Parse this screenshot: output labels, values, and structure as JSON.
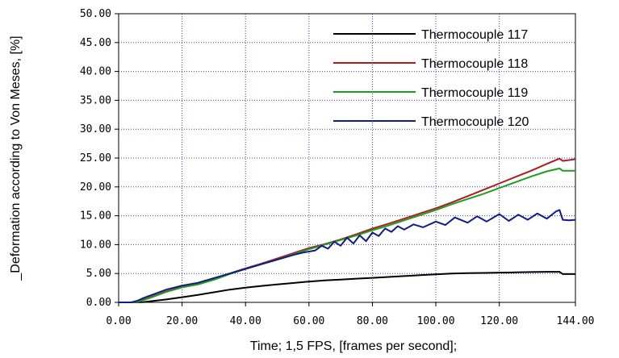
{
  "chart_data": {
    "type": "line",
    "title": "",
    "xlabel": "Time; 1,5 FPS, [frames per second];",
    "ylabel": "Deformation according to Von Meses, [%]",
    "ylabel_prefix": "_",
    "xlim": [
      0,
      144
    ],
    "ylim": [
      0,
      50
    ],
    "x_ticks": [
      "0.00",
      "20.00",
      "40.00",
      "60.00",
      "80.00",
      "100.00",
      "120.00",
      "144.00"
    ],
    "x_tick_values": [
      0,
      20,
      40,
      60,
      80,
      100,
      120,
      144
    ],
    "y_ticks": [
      "0.00",
      "5.00",
      "10.00",
      "15.00",
      "20.00",
      "25.00",
      "30.00",
      "35.00",
      "40.00",
      "45.00",
      "50.00"
    ],
    "y_tick_values": [
      0,
      5,
      10,
      15,
      20,
      25,
      30,
      35,
      40,
      45,
      50
    ],
    "grid": true,
    "legend_position": "top-right",
    "series": [
      {
        "name": "Thermocouple 117",
        "color": "#000000",
        "x": [
          0,
          5,
          8,
          10,
          15,
          20,
          25,
          30,
          35,
          40,
          45,
          50,
          55,
          60,
          65,
          70,
          75,
          80,
          85,
          90,
          95,
          100,
          105,
          110,
          115,
          120,
          125,
          130,
          135,
          139,
          140,
          144
        ],
        "y": [
          0,
          0,
          0.05,
          0.2,
          0.5,
          0.9,
          1.3,
          1.75,
          2.2,
          2.55,
          2.85,
          3.1,
          3.35,
          3.6,
          3.8,
          3.95,
          4.1,
          4.25,
          4.4,
          4.55,
          4.7,
          4.85,
          5.0,
          5.05,
          5.1,
          5.15,
          5.2,
          5.25,
          5.3,
          5.3,
          4.9,
          4.9
        ]
      },
      {
        "name": "Thermocouple 118",
        "color": "#b01c1c",
        "x": [
          0,
          4,
          6,
          8,
          10,
          15,
          20,
          25,
          30,
          35,
          40,
          45,
          50,
          55,
          60,
          65,
          70,
          75,
          80,
          85,
          90,
          95,
          100,
          105,
          110,
          115,
          120,
          125,
          130,
          135,
          139,
          140,
          144
        ],
        "y": [
          0,
          0,
          0.1,
          0.5,
          0.9,
          1.9,
          2.7,
          3.2,
          4.0,
          5.0,
          5.9,
          6.7,
          7.6,
          8.5,
          9.4,
          10.1,
          10.9,
          11.8,
          12.8,
          13.6,
          14.5,
          15.4,
          16.3,
          17.3,
          18.4,
          19.5,
          20.6,
          21.7,
          22.8,
          24.0,
          24.9,
          24.5,
          24.8
        ]
      },
      {
        "name": "Thermocouple 119",
        "color": "#1e9e1e",
        "x": [
          0,
          4,
          6,
          8,
          10,
          15,
          20,
          25,
          30,
          35,
          40,
          45,
          50,
          55,
          60,
          65,
          70,
          75,
          80,
          85,
          90,
          95,
          100,
          105,
          110,
          115,
          120,
          125,
          130,
          135,
          139,
          140,
          144
        ],
        "y": [
          0,
          0,
          0.1,
          0.4,
          0.8,
          1.8,
          2.6,
          3.1,
          3.9,
          4.9,
          5.8,
          6.6,
          7.4,
          8.3,
          9.2,
          10.0,
          10.8,
          11.6,
          12.5,
          13.3,
          14.2,
          15.1,
          16.0,
          17.0,
          17.9,
          18.8,
          19.8,
          20.8,
          21.8,
          22.7,
          23.2,
          22.8,
          22.8
        ]
      },
      {
        "name": "Thermocouple 120",
        "color": "#101c8c",
        "x": [
          0,
          4,
          6,
          8,
          10,
          15,
          20,
          25,
          30,
          35,
          40,
          45,
          50,
          55,
          58,
          60,
          62,
          64,
          66,
          68,
          70,
          72,
          74,
          76,
          78,
          80,
          82,
          84,
          86,
          88,
          90,
          93,
          96,
          100,
          103,
          106,
          110,
          113,
          116,
          120,
          123,
          126,
          129,
          132,
          135,
          138,
          139,
          140,
          142,
          144
        ],
        "y": [
          0,
          0,
          0.3,
          0.8,
          1.2,
          2.2,
          2.9,
          3.4,
          4.2,
          5.0,
          5.8,
          6.6,
          7.4,
          8.2,
          8.6,
          8.8,
          9.0,
          9.8,
          9.3,
          10.5,
          9.8,
          11.2,
          10.2,
          11.6,
          10.6,
          12.1,
          11.5,
          12.8,
          12.2,
          13.2,
          12.6,
          13.5,
          13.0,
          14.0,
          13.4,
          14.7,
          13.8,
          14.9,
          14.0,
          15.3,
          14.1,
          15.2,
          14.3,
          15.4,
          14.5,
          15.8,
          16.0,
          14.3,
          14.2,
          14.3
        ]
      }
    ]
  }
}
